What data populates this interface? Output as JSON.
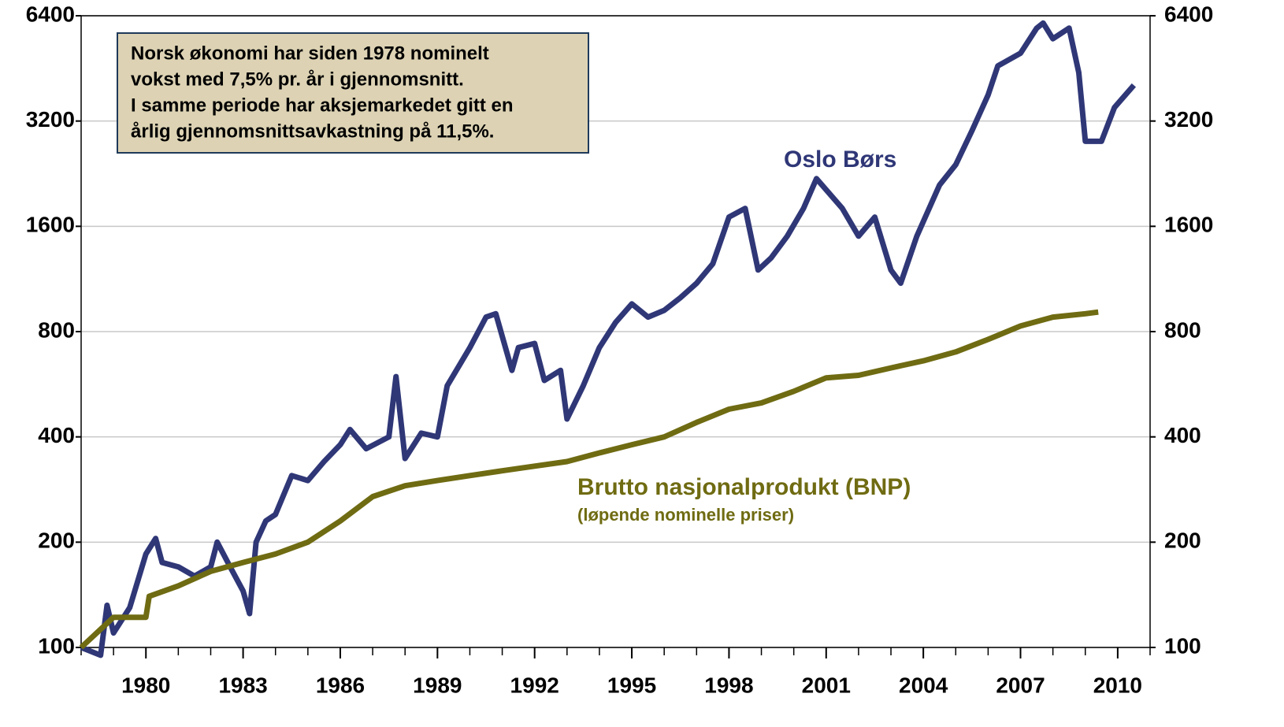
{
  "chart_data": {
    "type": "line",
    "annotation": [
      "Norsk økonomi har siden 1978 nominelt",
      "vokst med 7,5% pr. år i gjennomsnitt.",
      "I samme periode har aksjemarkedet gitt en",
      "årlig gjennomsnittsavkastning på 11,5%."
    ],
    "series_labels": {
      "oslo": "Oslo Børs",
      "bnp": "Brutto nasjonalprodukt (BNP)",
      "bnp_sub": "(løpende nominelle priser)"
    },
    "xlim": [
      1978,
      2011
    ],
    "xticks": [
      1980,
      1983,
      1986,
      1989,
      1992,
      1995,
      1998,
      2001,
      2004,
      2007,
      2010
    ],
    "ylim": [
      100,
      6400
    ],
    "yticks": [
      100,
      200,
      400,
      800,
      1600,
      3200,
      6400
    ],
    "y2lim": [
      100,
      6400
    ],
    "y2ticks": [
      100,
      200,
      400,
      800,
      1600,
      3200,
      6400
    ],
    "log_scale": true,
    "grid": true,
    "series": [
      {
        "name": "Oslo Børs",
        "color": "#2f3777",
        "x": [
          1978.0,
          1978.6,
          1978.8,
          1979.0,
          1979.5,
          1980.0,
          1980.3,
          1980.5,
          1981.0,
          1981.5,
          1982.0,
          1982.2,
          1982.6,
          1983.0,
          1983.2,
          1983.4,
          1983.7,
          1984.0,
          1984.5,
          1985.0,
          1985.5,
          1986.0,
          1986.3,
          1986.8,
          1987.5,
          1987.72,
          1988.0,
          1988.5,
          1989.0,
          1989.3,
          1990.0,
          1990.5,
          1990.8,
          1991.3,
          1991.5,
          1992.0,
          1992.3,
          1992.8,
          1993.0,
          1993.5,
          1994.0,
          1994.5,
          1995.0,
          1995.5,
          1996.0,
          1996.5,
          1997.0,
          1997.5,
          1998.0,
          1998.5,
          1998.9,
          1999.3,
          1999.8,
          2000.3,
          2000.7,
          2001.5,
          2002.0,
          2002.5,
          2003.0,
          2003.3,
          2003.8,
          2004.5,
          2005.0,
          2005.5,
          2006.0,
          2006.3,
          2007.0,
          2007.5,
          2007.7,
          2008.0,
          2008.5,
          2008.8,
          2009.0,
          2009.5,
          2009.9,
          2010.5
        ],
        "values": [
          100,
          95,
          132,
          110,
          130,
          185,
          205,
          175,
          170,
          160,
          170,
          200,
          170,
          145,
          125,
          200,
          230,
          240,
          310,
          300,
          340,
          380,
          420,
          370,
          400,
          595,
          347,
          410,
          400,
          560,
          720,
          880,
          900,
          620,
          720,
          740,
          580,
          620,
          450,
          560,
          720,
          850,
          960,
          880,
          920,
          1000,
          1100,
          1250,
          1700,
          1800,
          1200,
          1300,
          1500,
          1800,
          2190,
          1800,
          1500,
          1700,
          1200,
          1100,
          1500,
          2100,
          2400,
          3000,
          3800,
          4600,
          5000,
          5900,
          6100,
          5500,
          5900,
          4400,
          2800,
          2800,
          3500,
          4050
        ]
      },
      {
        "name": "Brutto nasjonalprodukt (BNP)",
        "color": "#6f6b12",
        "x": [
          1978,
          1979,
          1980,
          1980.1,
          1981,
          1982,
          1983,
          1984,
          1985,
          1986,
          1987,
          1988,
          1989,
          1990,
          1991,
          1992,
          1993,
          1994,
          1995,
          1996,
          1997,
          1998,
          1999,
          2000,
          2001,
          2002,
          2003,
          2004,
          2005,
          2006,
          2007,
          2008,
          2009,
          2009.4
        ],
        "values": [
          100,
          122,
          122,
          140,
          150,
          165,
          175,
          185,
          200,
          230,
          270,
          290,
          300,
          310,
          320,
          330,
          340,
          360,
          380,
          400,
          440,
          480,
          500,
          540,
          590,
          600,
          630,
          660,
          700,
          760,
          830,
          880,
          900,
          910
        ]
      }
    ]
  }
}
